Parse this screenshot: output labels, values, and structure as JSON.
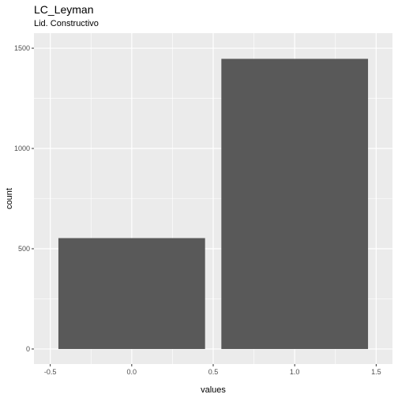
{
  "chart_data": {
    "type": "bar",
    "title": "LC_Leyman",
    "subtitle": "Lid. Constructivo",
    "xlabel": "values",
    "ylabel": "count",
    "x": [
      0,
      1
    ],
    "values": [
      553,
      1447
    ],
    "bar_width": 0.9,
    "xlim": [
      -0.5,
      1.5
    ],
    "ylim": [
      0,
      1500
    ],
    "xticks": [
      "-0.5",
      "0.0",
      "0.5",
      "1.0",
      "1.5"
    ],
    "yticks": [
      "0",
      "500",
      "1000",
      "1500"
    ],
    "bar_color": "#595959",
    "panel_color": "#ebebeb",
    "grid": true
  }
}
